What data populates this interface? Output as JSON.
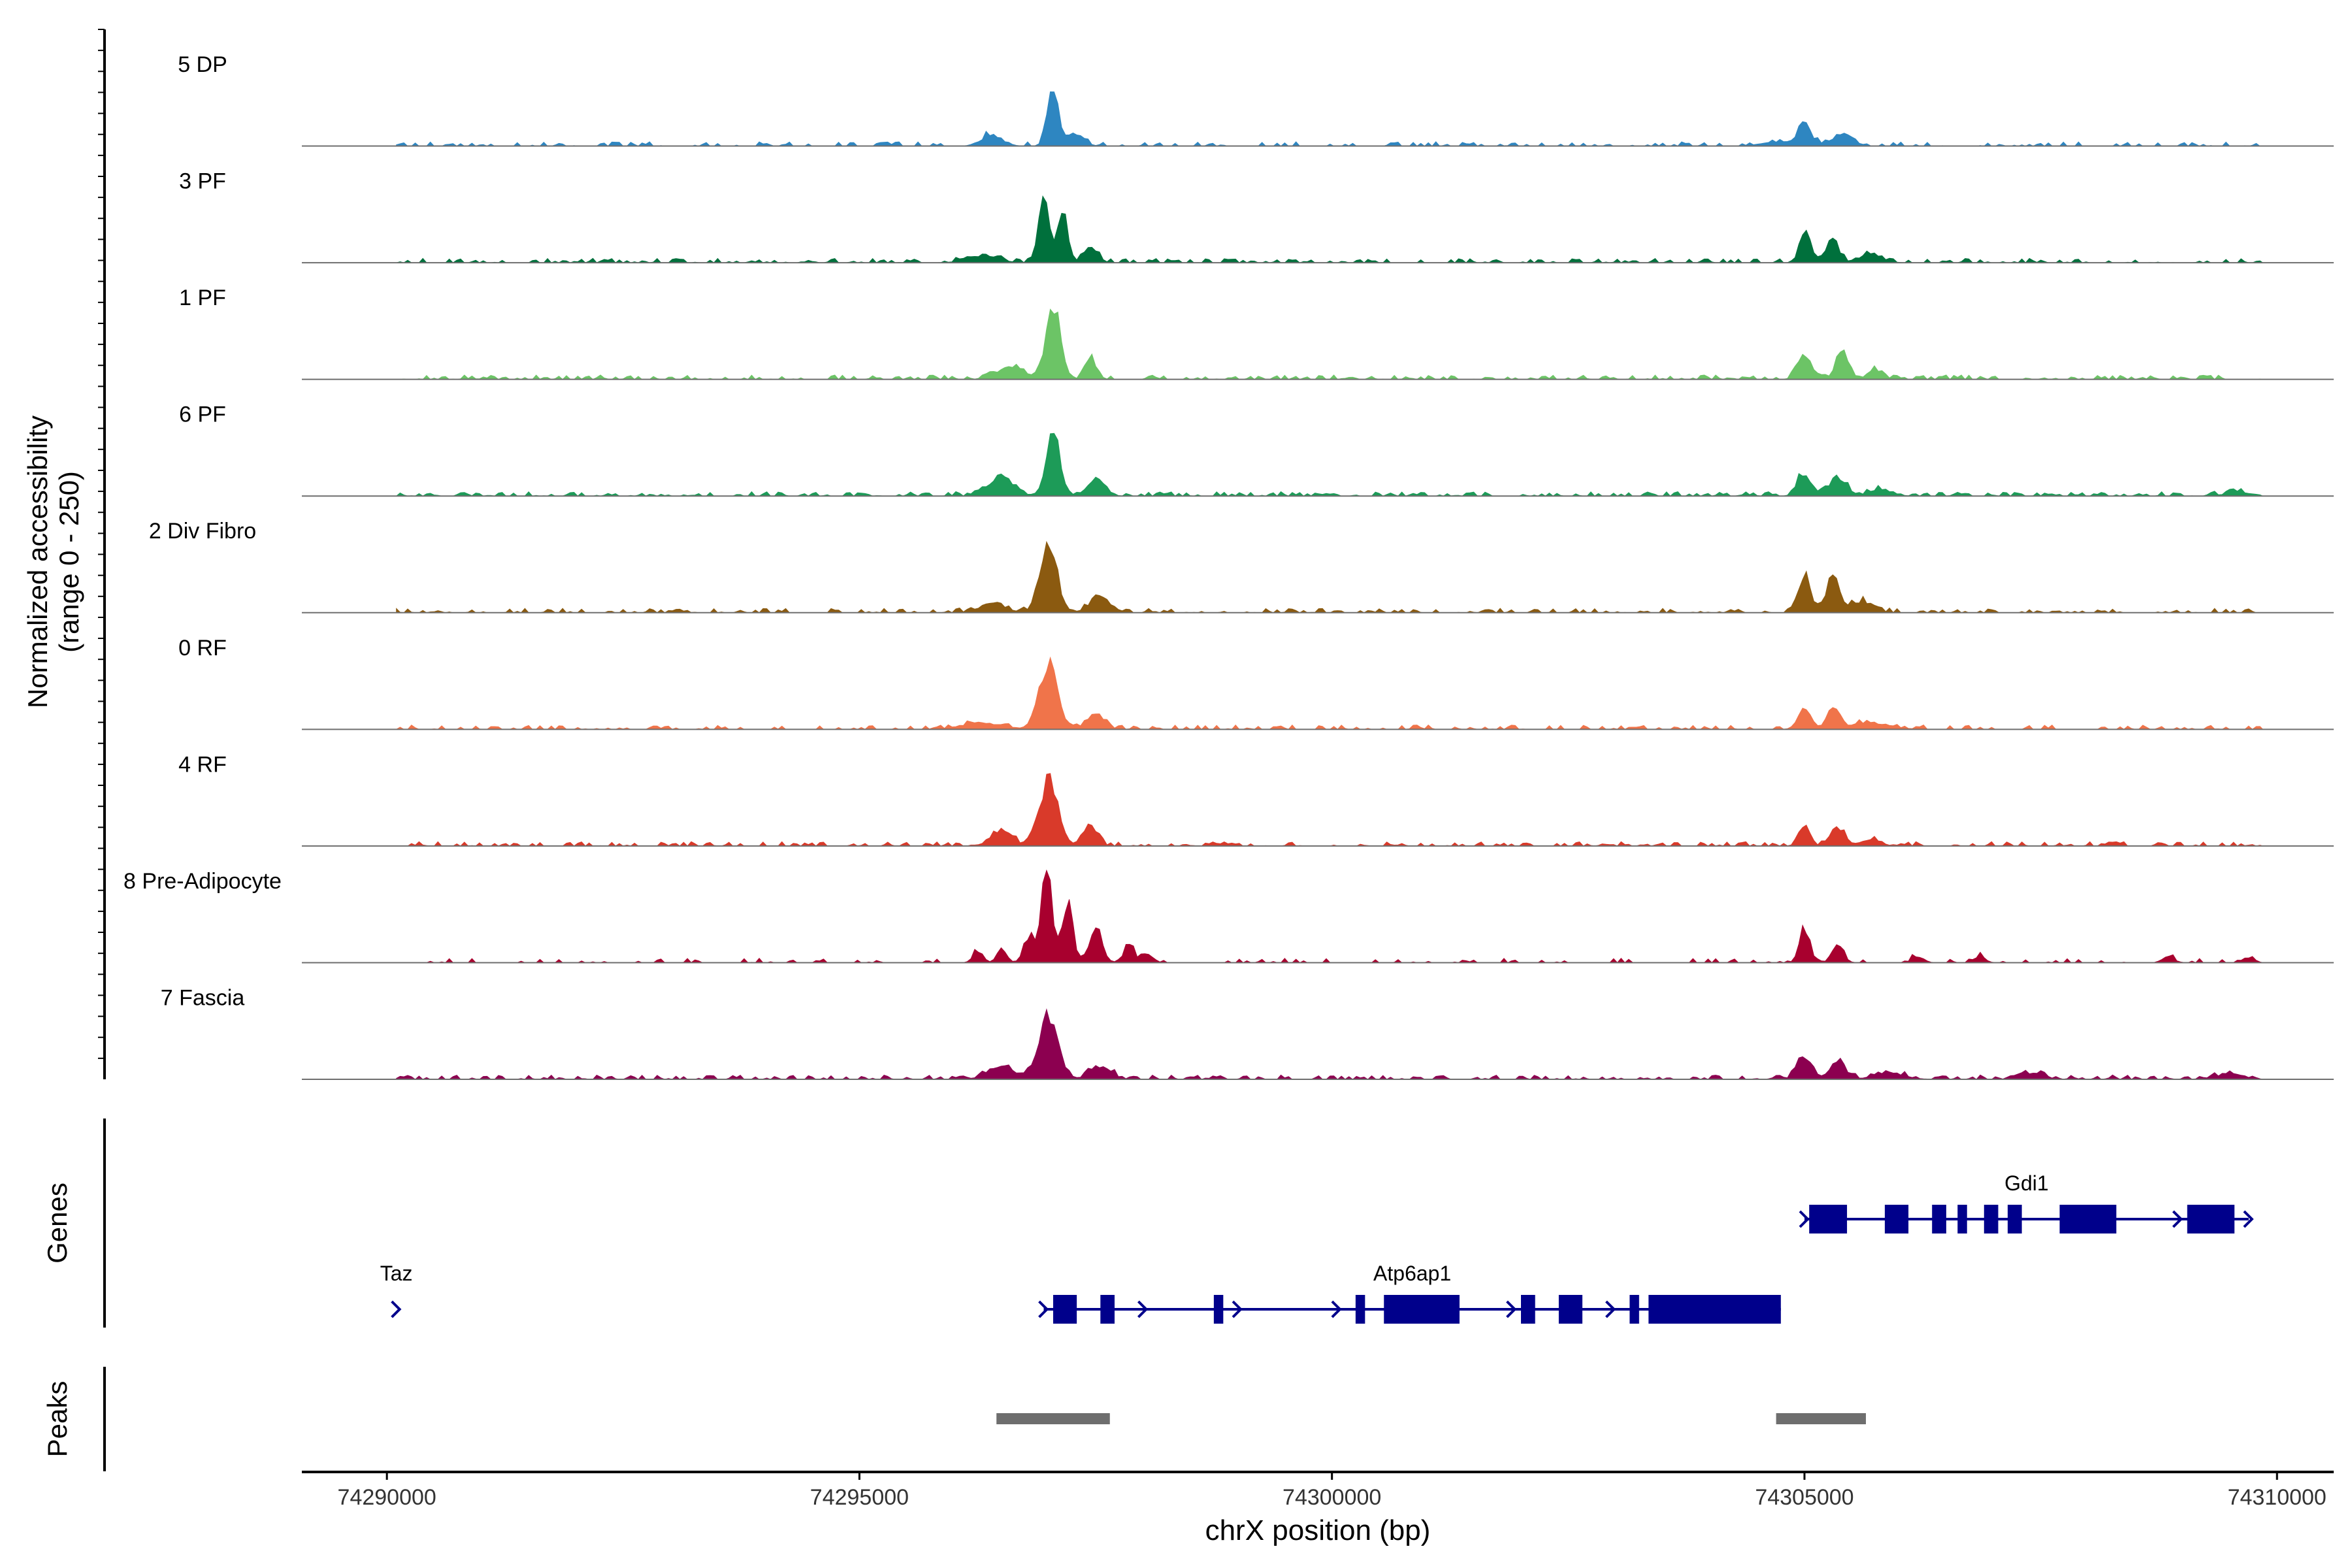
{
  "chart_data": {
    "type": "coverage-track",
    "y_axis": {
      "label_line1": "Normalized accessibility",
      "label_line2": "(range 0 - 250)",
      "range": [
        0,
        250
      ]
    },
    "x_axis": {
      "label": "chrX position (bp)",
      "range": [
        74289100,
        74310600
      ],
      "ticks": [
        {
          "value": 74290000,
          "label": "74290000"
        },
        {
          "value": 74295000,
          "label": "74295000"
        },
        {
          "value": 74300000,
          "label": "74300000"
        },
        {
          "value": 74305000,
          "label": "74305000"
        },
        {
          "value": 74310000,
          "label": "74310000"
        }
      ]
    },
    "tracks": [
      {
        "name": "5 DP",
        "color": "#2e86c1",
        "noise": 0.01,
        "peaks": [
          [
            74297050,
            140,
            60
          ],
          [
            74296400,
            25,
            110
          ],
          [
            74297300,
            30,
            80
          ],
          [
            74305000,
            55,
            70
          ],
          [
            74305400,
            28,
            110
          ],
          [
            74304700,
            10,
            150
          ]
        ]
      },
      {
        "name": "3 PF",
        "color": "#00703c",
        "noise": 0.012,
        "peaks": [
          [
            74296950,
            150,
            55
          ],
          [
            74297150,
            110,
            55
          ],
          [
            74297450,
            40,
            70
          ],
          [
            74296300,
            15,
            160
          ],
          [
            74305000,
            70,
            55
          ],
          [
            74305300,
            60,
            60
          ],
          [
            74305700,
            20,
            120
          ]
        ]
      },
      {
        "name": "1 PF",
        "color": "#6cc466",
        "noise": 0.014,
        "peaks": [
          [
            74297050,
            170,
            75
          ],
          [
            74296600,
            30,
            140
          ],
          [
            74297450,
            50,
            60
          ],
          [
            74305000,
            55,
            70
          ],
          [
            74305400,
            65,
            70
          ],
          [
            74305750,
            20,
            80
          ]
        ]
      },
      {
        "name": "6 PF",
        "color": "#1d9b58",
        "noise": 0.015,
        "peaks": [
          [
            74297050,
            140,
            75
          ],
          [
            74296500,
            45,
            130
          ],
          [
            74297500,
            40,
            90
          ],
          [
            74305000,
            55,
            70
          ],
          [
            74305350,
            45,
            90
          ],
          [
            74305800,
            15,
            120
          ],
          [
            74309600,
            8,
            150
          ]
        ]
      },
      {
        "name": "2 Div Fibro",
        "color": "#8b5a10",
        "noise": 0.012,
        "peaks": [
          [
            74297000,
            150,
            90
          ],
          [
            74296400,
            20,
            140
          ],
          [
            74297550,
            35,
            110
          ],
          [
            74305000,
            85,
            65
          ],
          [
            74305300,
            90,
            65
          ],
          [
            74305600,
            25,
            120
          ]
        ]
      },
      {
        "name": "0 RF",
        "color": "#f0744a",
        "noise": 0.01,
        "peaks": [
          [
            74297000,
            150,
            95
          ],
          [
            74296300,
            15,
            220
          ],
          [
            74297500,
            35,
            90
          ],
          [
            74305000,
            45,
            70
          ],
          [
            74305300,
            55,
            60
          ],
          [
            74305700,
            15,
            200
          ]
        ]
      },
      {
        "name": "4 RF",
        "color": "#d93a2a",
        "noise": 0.012,
        "peaks": [
          [
            74297000,
            150,
            100
          ],
          [
            74296500,
            35,
            110
          ],
          [
            74297450,
            50,
            70
          ],
          [
            74305000,
            45,
            60
          ],
          [
            74305350,
            45,
            70
          ],
          [
            74305700,
            15,
            100
          ]
        ]
      },
      {
        "name": "8 Pre-Adipocyte",
        "color": "#a8002e",
        "noise": 0.006,
        "peaks": [
          [
            74296980,
            240,
            55
          ],
          [
            74297200,
            130,
            60
          ],
          [
            74296800,
            60,
            60
          ],
          [
            74297500,
            70,
            70
          ],
          [
            74297850,
            35,
            60
          ],
          [
            74296500,
            30,
            50
          ],
          [
            74296250,
            25,
            50
          ],
          [
            74298050,
            20,
            60
          ],
          [
            74305000,
            75,
            55
          ],
          [
            74305350,
            40,
            60
          ],
          [
            74306200,
            15,
            60
          ],
          [
            74306850,
            15,
            60
          ],
          [
            74308850,
            15,
            60
          ],
          [
            74309700,
            12,
            60
          ]
        ]
      },
      {
        "name": "7 Fascia",
        "color": "#8c0050",
        "noise": 0.014,
        "peaks": [
          [
            74297000,
            150,
            100
          ],
          [
            74296500,
            30,
            140
          ],
          [
            74297550,
            30,
            110
          ],
          [
            74305000,
            50,
            80
          ],
          [
            74305350,
            45,
            80
          ],
          [
            74305900,
            15,
            160
          ],
          [
            74307400,
            15,
            120
          ],
          [
            74309500,
            12,
            150
          ]
        ]
      }
    ],
    "genes_label": "Genes",
    "genes": [
      {
        "name": "Gdi1",
        "row": 0,
        "start": 74305000,
        "end": 74309700,
        "strand": "+",
        "exons": [
          [
            74305050,
            74305450
          ],
          [
            74305850,
            74306100
          ],
          [
            74306350,
            74306500
          ],
          [
            74306620,
            74306720
          ],
          [
            74306900,
            74307050
          ],
          [
            74307150,
            74307300
          ],
          [
            74307700,
            74308300
          ],
          [
            74309050,
            74309550
          ]
        ],
        "arrows": [
          74305000,
          74308950,
          74309700
        ]
      },
      {
        "name": "Taz",
        "row": 1,
        "start": 74290050,
        "end": 74290150,
        "strand": "+",
        "exons": [],
        "arrows": [
          74290100
        ]
      },
      {
        "name": "Atp6ap1",
        "row": 1,
        "start": 74296950,
        "end": 74304750,
        "strand": "+",
        "exons": [
          [
            74297050,
            74297300
          ],
          [
            74297550,
            74297700
          ],
          [
            74298750,
            74298850
          ],
          [
            74300250,
            74300350
          ],
          [
            74300550,
            74301350
          ],
          [
            74302000,
            74302150
          ],
          [
            74302400,
            74302650
          ],
          [
            74303150,
            74303250
          ],
          [
            74303350,
            74304750
          ]
        ],
        "arrows": [
          74296950,
          74298000,
          74299000,
          74300050,
          74301900,
          74302100,
          74302950
        ]
      }
    ],
    "peaks_label": "Peaks",
    "peak_regions": [
      [
        74296450,
        74297650
      ],
      [
        74304700,
        74305650
      ]
    ]
  }
}
